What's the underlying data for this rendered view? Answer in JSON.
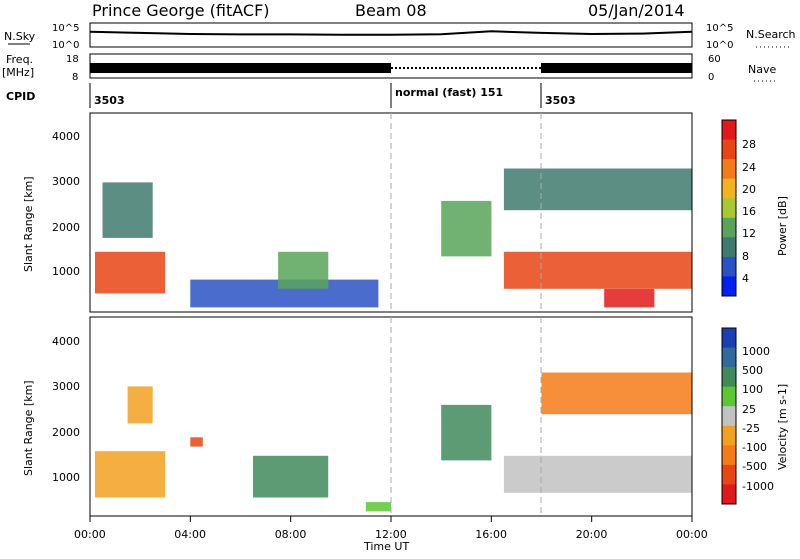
{
  "header": {
    "station": "Prince George (fitACF)",
    "beam": "Beam 08",
    "date": "05/Jan/2014"
  },
  "noise_panel": {
    "left_label": "N.Sky",
    "left_ticks": [
      "10^5",
      "10^0"
    ],
    "right_ticks": [
      "10^5",
      "10^0"
    ],
    "right_label": "N.Search"
  },
  "freq_panel": {
    "left_label_1": "Freq.",
    "left_label_2": "[MHz]",
    "left_ticks": [
      "18",
      "8"
    ],
    "right_ticks": [
      "60",
      "0"
    ],
    "right_label": "Nave"
  },
  "cpid": {
    "label": "CPID",
    "segments": [
      {
        "text": "3503",
        "start_hour": 0,
        "end_hour": 12
      },
      {
        "text": "normal (fast) 151",
        "start_hour": 12,
        "end_hour": 18
      },
      {
        "text": "3503",
        "start_hour": 18,
        "end_hour": 24
      }
    ]
  },
  "x_axis": {
    "title": "Time UT",
    "ticks": [
      "00:00",
      "04:00",
      "08:00",
      "12:00",
      "16:00",
      "20:00",
      "00:00"
    ],
    "range_hours": [
      0,
      24
    ]
  },
  "power_panel": {
    "ylabel": "Slant Range [km]",
    "yticks": [
      "4000",
      "3000",
      "2000",
      "1000"
    ],
    "colorbar_label": "Power [dB]",
    "colorbar_ticks": [
      "28",
      "24",
      "20",
      "16",
      "12",
      "8",
      "4"
    ],
    "colors": [
      "#0022ee",
      "#2a52c4",
      "#3f7a6e",
      "#58a45a",
      "#a8c832",
      "#f2b41e",
      "#f57a18",
      "#e84414",
      "#e01a1a"
    ]
  },
  "velocity_panel": {
    "ylabel": "Slant Range [km]",
    "yticks": [
      "4000",
      "3000",
      "2000",
      "1000"
    ],
    "colorbar_label": "Velocity [m s-1]",
    "colorbar_ticks": [
      "1000",
      "500",
      "100",
      "25",
      "-25",
      "-100",
      "-500",
      "-1000"
    ],
    "colors": [
      "#1a3fb0",
      "#2f6a9a",
      "#3f8a5a",
      "#5ac832",
      "#c2c2c2",
      "#f2a020",
      "#f57a18",
      "#e84414",
      "#e01a1a"
    ]
  },
  "chart_data": [
    {
      "type": "line",
      "title": "N.Sky",
      "x": [
        0,
        2,
        4,
        6,
        8,
        10,
        12,
        14,
        16,
        18,
        20,
        22,
        24
      ],
      "y": [
        3000,
        1500,
        800,
        600,
        600,
        500,
        500,
        700,
        4000,
        1500,
        800,
        1000,
        3000
      ],
      "yscale": "log",
      "ylim": [
        1,
        100000
      ]
    },
    {
      "type": "bar",
      "title": "Freq.",
      "x": [
        0,
        12,
        18,
        24
      ],
      "values": [
        11,
        11,
        11,
        11
      ],
      "ylim": [
        8,
        18
      ]
    },
    {
      "type": "heatmap",
      "title": "Power [dB]",
      "xlabel": "Time UT",
      "ylabel": "Slant Range [km]",
      "xlim": [
        0,
        24
      ],
      "ylim": [
        200,
        4500
      ],
      "clim": [
        0,
        32
      ],
      "regions": [
        {
          "t0": 0.2,
          "t1": 3.0,
          "r0": 600,
          "r1": 1500,
          "level": 26
        },
        {
          "t0": 0.5,
          "t1": 2.5,
          "r0": 1800,
          "r1": 3000,
          "level": 8
        },
        {
          "t0": 4.0,
          "t1": 11.5,
          "r0": 300,
          "r1": 900,
          "level": 6
        },
        {
          "t0": 7.5,
          "t1": 9.5,
          "r0": 700,
          "r1": 1500,
          "level": 14
        },
        {
          "t0": 14.0,
          "t1": 16.0,
          "r0": 1400,
          "r1": 2600,
          "level": 14
        },
        {
          "t0": 16.5,
          "t1": 24.0,
          "r0": 700,
          "r1": 1500,
          "level": 28
        },
        {
          "t0": 16.5,
          "t1": 24.0,
          "r0": 2400,
          "r1": 3300,
          "level": 10
        },
        {
          "t0": 20.5,
          "t1": 22.5,
          "r0": 300,
          "r1": 700,
          "level": 30
        }
      ]
    },
    {
      "type": "heatmap",
      "title": "Velocity [m s-1]",
      "xlabel": "Time UT",
      "ylabel": "Slant Range [km]",
      "xlim": [
        0,
        24
      ],
      "ylim": [
        200,
        4500
      ],
      "clim": [
        -1000,
        1000
      ],
      "regions": [
        {
          "t0": 0.2,
          "t1": 3.0,
          "r0": 600,
          "r1": 1600,
          "level": -100
        },
        {
          "t0": 1.5,
          "t1": 2.5,
          "r0": 2200,
          "r1": 3000,
          "level": -100
        },
        {
          "t0": 4.0,
          "t1": 4.5,
          "r0": 1700,
          "r1": 1900,
          "level": -1000
        },
        {
          "t0": 6.5,
          "t1": 9.5,
          "r0": 600,
          "r1": 1500,
          "level": 100
        },
        {
          "t0": 11.0,
          "t1": 12.0,
          "r0": 300,
          "r1": 500,
          "level": 50
        },
        {
          "t0": 14.0,
          "t1": 16.0,
          "r0": 1400,
          "r1": 2600,
          "level": 100
        },
        {
          "t0": 16.5,
          "t1": 24.0,
          "r0": 700,
          "r1": 1500,
          "level": 0
        },
        {
          "t0": 18.0,
          "t1": 24.0,
          "r0": 2400,
          "r1": 3300,
          "level": -500
        }
      ]
    }
  ]
}
